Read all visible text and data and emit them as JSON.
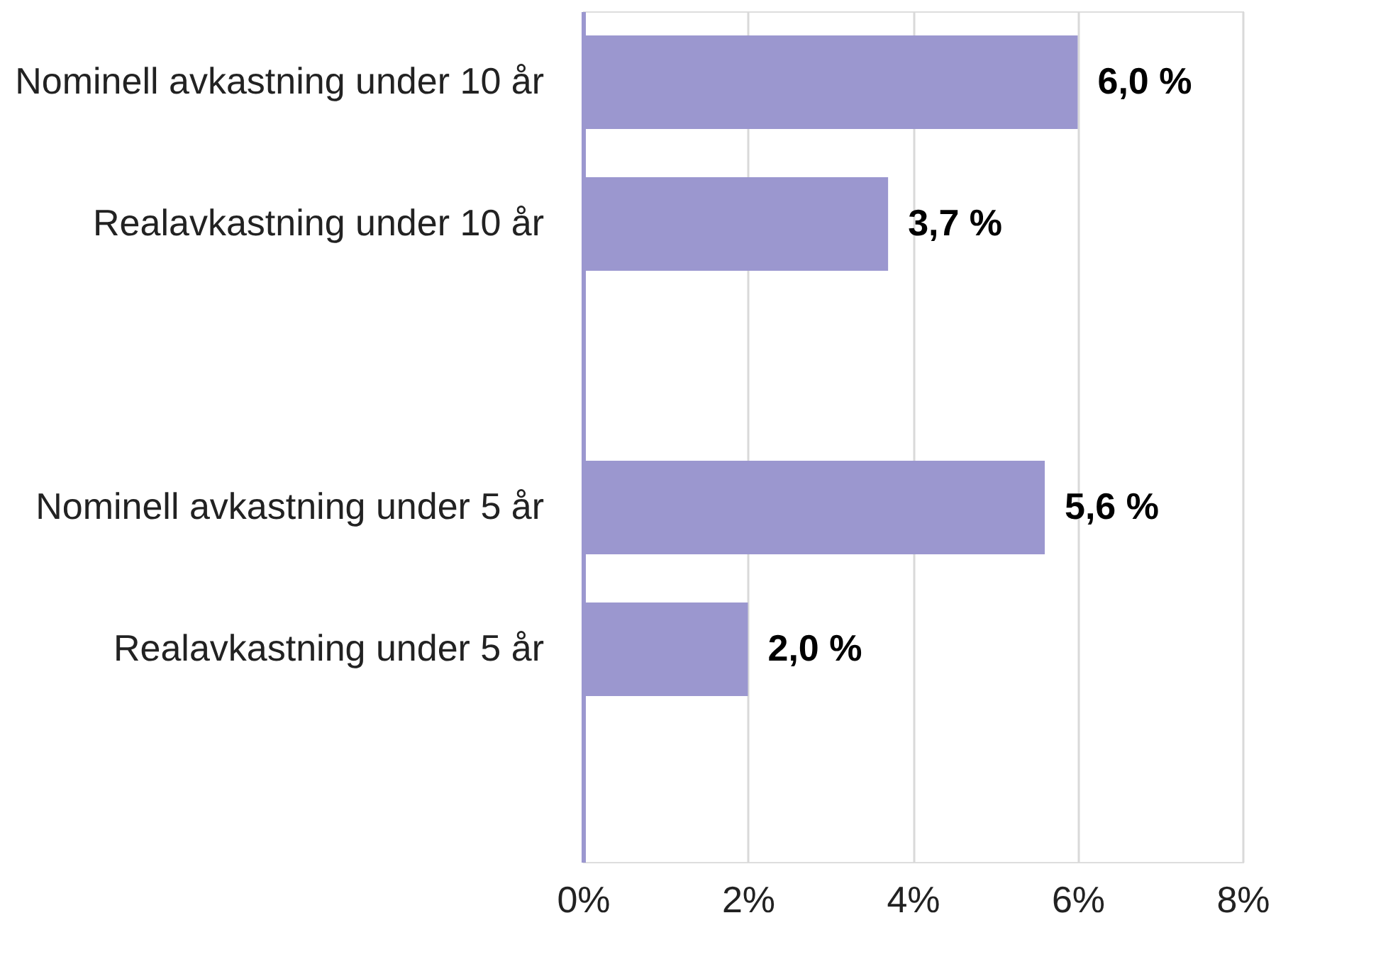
{
  "chart_data": {
    "type": "bar",
    "orientation": "horizontal",
    "categories": [
      "Nominell avkastning under 10 år",
      "Realavkastning under 10 år",
      null,
      "Nominell avkastning under 5 år",
      "Realavkastning under 5 år",
      null
    ],
    "values": [
      6.0,
      3.7,
      null,
      5.6,
      2.0,
      null
    ],
    "value_labels": [
      "6,0 %",
      "3,7 %",
      null,
      "5,6 %",
      "2,0 %",
      null
    ],
    "color": "#9b97cf",
    "xlim": [
      0,
      8
    ],
    "xticks": [
      {
        "value": 0,
        "label": "0%"
      },
      {
        "value": 2,
        "label": "2%"
      },
      {
        "value": 4,
        "label": "4%"
      },
      {
        "value": 6,
        "label": "6%"
      },
      {
        "value": 8,
        "label": "8%"
      }
    ],
    "grid": "x"
  }
}
